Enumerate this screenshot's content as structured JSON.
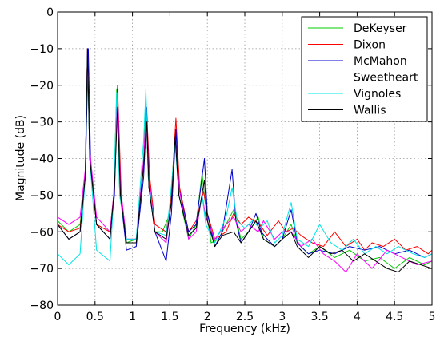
{
  "chart_data": {
    "type": "line",
    "title": "",
    "xlabel": "Frequency (kHz)",
    "ylabel": "Magnitude (dB)",
    "xlim": [
      0,
      5
    ],
    "ylim": [
      -80,
      0
    ],
    "grid": true,
    "legend_position": "top-right",
    "x_ticks": [
      "0",
      "0.5",
      "1",
      "1.5",
      "2",
      "2.5",
      "3",
      "3.5",
      "4",
      "4.5",
      "5"
    ],
    "y_ticks": [
      "0",
      "−10",
      "−20",
      "−30",
      "−40",
      "−50",
      "−60",
      "−70",
      "−80"
    ],
    "series": [
      {
        "name": "DeKeyser",
        "color": "#00cc00",
        "points": [
          [
            0,
            -57
          ],
          [
            0.15,
            -60
          ],
          [
            0.3,
            -58
          ],
          [
            0.37,
            -45
          ],
          [
            0.4,
            -10
          ],
          [
            0.43,
            -40
          ],
          [
            0.52,
            -58
          ],
          [
            0.7,
            -60
          ],
          [
            0.75,
            -50
          ],
          [
            0.79,
            -21
          ],
          [
            0.83,
            -50
          ],
          [
            0.92,
            -63
          ],
          [
            1.05,
            -62
          ],
          [
            1.15,
            -40
          ],
          [
            1.18,
            -25
          ],
          [
            1.21,
            -45
          ],
          [
            1.3,
            -60
          ],
          [
            1.4,
            -60
          ],
          [
            1.5,
            -55
          ],
          [
            1.57,
            -33
          ],
          [
            1.62,
            -50
          ],
          [
            1.75,
            -62
          ],
          [
            1.85,
            -58
          ],
          [
            1.93,
            -44
          ],
          [
            1.97,
            -52
          ],
          [
            2.05,
            -63
          ],
          [
            2.15,
            -62
          ],
          [
            2.25,
            -58
          ],
          [
            2.35,
            -54
          ],
          [
            2.45,
            -62
          ],
          [
            2.55,
            -60
          ],
          [
            2.68,
            -56
          ],
          [
            2.75,
            -62
          ],
          [
            2.9,
            -64
          ],
          [
            3.0,
            -62
          ],
          [
            3.12,
            -58
          ],
          [
            3.2,
            -63
          ],
          [
            3.35,
            -66
          ],
          [
            3.5,
            -64
          ],
          [
            3.7,
            -67
          ],
          [
            3.9,
            -65
          ],
          [
            4.1,
            -68
          ],
          [
            4.3,
            -67
          ],
          [
            4.5,
            -70
          ],
          [
            4.7,
            -67
          ],
          [
            4.9,
            -69
          ],
          [
            5.0,
            -68
          ]
        ]
      },
      {
        "name": "Dixon",
        "color": "#ff0000",
        "points": [
          [
            0,
            -58
          ],
          [
            0.15,
            -60
          ],
          [
            0.3,
            -59
          ],
          [
            0.37,
            -45
          ],
          [
            0.4,
            -10
          ],
          [
            0.43,
            -40
          ],
          [
            0.52,
            -58
          ],
          [
            0.7,
            -60
          ],
          [
            0.75,
            -50
          ],
          [
            0.8,
            -20
          ],
          [
            0.85,
            -50
          ],
          [
            0.92,
            -62
          ],
          [
            1.05,
            -62
          ],
          [
            1.15,
            -42
          ],
          [
            1.19,
            -27
          ],
          [
            1.23,
            -45
          ],
          [
            1.3,
            -58
          ],
          [
            1.45,
            -60
          ],
          [
            1.52,
            -50
          ],
          [
            1.58,
            -29
          ],
          [
            1.63,
            -48
          ],
          [
            1.75,
            -60
          ],
          [
            1.85,
            -57
          ],
          [
            1.95,
            -49
          ],
          [
            2.0,
            -55
          ],
          [
            2.1,
            -62
          ],
          [
            2.25,
            -60
          ],
          [
            2.35,
            -55
          ],
          [
            2.45,
            -58
          ],
          [
            2.55,
            -56
          ],
          [
            2.7,
            -58
          ],
          [
            2.8,
            -61
          ],
          [
            2.95,
            -57
          ],
          [
            3.05,
            -60
          ],
          [
            3.15,
            -59
          ],
          [
            3.25,
            -61
          ],
          [
            3.4,
            -63
          ],
          [
            3.55,
            -64
          ],
          [
            3.7,
            -60
          ],
          [
            3.85,
            -64
          ],
          [
            4.0,
            -62
          ],
          [
            4.1,
            -65
          ],
          [
            4.2,
            -63
          ],
          [
            4.35,
            -64
          ],
          [
            4.5,
            -62
          ],
          [
            4.65,
            -65
          ],
          [
            4.8,
            -64
          ],
          [
            4.95,
            -66
          ],
          [
            5.0,
            -65
          ]
        ]
      },
      {
        "name": "McMahon",
        "color": "#0000cc",
        "points": [
          [
            0,
            -58
          ],
          [
            0.15,
            -62
          ],
          [
            0.3,
            -60
          ],
          [
            0.37,
            -45
          ],
          [
            0.41,
            -10
          ],
          [
            0.44,
            -40
          ],
          [
            0.52,
            -58
          ],
          [
            0.7,
            -62
          ],
          [
            0.76,
            -50
          ],
          [
            0.8,
            -21
          ],
          [
            0.84,
            -50
          ],
          [
            0.92,
            -65
          ],
          [
            1.05,
            -64
          ],
          [
            1.15,
            -45
          ],
          [
            1.19,
            -26
          ],
          [
            1.22,
            -48
          ],
          [
            1.3,
            -60
          ],
          [
            1.45,
            -68
          ],
          [
            1.52,
            -55
          ],
          [
            1.58,
            -32
          ],
          [
            1.62,
            -48
          ],
          [
            1.75,
            -60
          ],
          [
            1.85,
            -58
          ],
          [
            1.96,
            -40
          ],
          [
            2.0,
            -55
          ],
          [
            2.1,
            -64
          ],
          [
            2.2,
            -60
          ],
          [
            2.33,
            -43
          ],
          [
            2.38,
            -57
          ],
          [
            2.45,
            -63
          ],
          [
            2.55,
            -60
          ],
          [
            2.65,
            -55
          ],
          [
            2.72,
            -60
          ],
          [
            2.8,
            -62
          ],
          [
            2.9,
            -64
          ],
          [
            3.0,
            -62
          ],
          [
            3.12,
            -54
          ],
          [
            3.2,
            -63
          ],
          [
            3.35,
            -66
          ],
          [
            3.5,
            -65
          ],
          [
            3.7,
            -66
          ],
          [
            3.9,
            -64
          ],
          [
            4.1,
            -65
          ],
          [
            4.3,
            -64
          ],
          [
            4.5,
            -66
          ],
          [
            4.7,
            -65
          ],
          [
            4.9,
            -67
          ],
          [
            5.0,
            -66
          ]
        ]
      },
      {
        "name": "Sweetheart",
        "color": "#ff00ff",
        "points": [
          [
            0,
            -56
          ],
          [
            0.15,
            -58
          ],
          [
            0.3,
            -56
          ],
          [
            0.37,
            -43
          ],
          [
            0.4,
            -10
          ],
          [
            0.43,
            -38
          ],
          [
            0.52,
            -56
          ],
          [
            0.7,
            -60
          ],
          [
            0.76,
            -48
          ],
          [
            0.8,
            -22
          ],
          [
            0.84,
            -48
          ],
          [
            0.92,
            -62
          ],
          [
            1.05,
            -62
          ],
          [
            1.15,
            -40
          ],
          [
            1.18,
            -28
          ],
          [
            1.22,
            -45
          ],
          [
            1.3,
            -60
          ],
          [
            1.45,
            -63
          ],
          [
            1.52,
            -52
          ],
          [
            1.57,
            -34
          ],
          [
            1.62,
            -48
          ],
          [
            1.75,
            -62
          ],
          [
            1.85,
            -60
          ],
          [
            1.93,
            -50
          ],
          [
            1.98,
            -56
          ],
          [
            2.1,
            -62
          ],
          [
            2.25,
            -58
          ],
          [
            2.35,
            -56
          ],
          [
            2.45,
            -60
          ],
          [
            2.55,
            -58
          ],
          [
            2.68,
            -60
          ],
          [
            2.75,
            -57
          ],
          [
            2.9,
            -62
          ],
          [
            3.0,
            -60
          ],
          [
            3.12,
            -60
          ],
          [
            3.25,
            -64
          ],
          [
            3.4,
            -62
          ],
          [
            3.55,
            -66
          ],
          [
            3.7,
            -68
          ],
          [
            3.85,
            -71
          ],
          [
            4.0,
            -66
          ],
          [
            4.2,
            -70
          ],
          [
            4.4,
            -65
          ],
          [
            4.6,
            -67
          ],
          [
            4.8,
            -69
          ],
          [
            5.0,
            -68
          ]
        ]
      },
      {
        "name": "Vignoles",
        "color": "#00e5e5",
        "points": [
          [
            0,
            -66
          ],
          [
            0.15,
            -69
          ],
          [
            0.3,
            -66
          ],
          [
            0.37,
            -45
          ],
          [
            0.4,
            -11
          ],
          [
            0.43,
            -40
          ],
          [
            0.52,
            -65
          ],
          [
            0.7,
            -68
          ],
          [
            0.75,
            -50
          ],
          [
            0.79,
            -22
          ],
          [
            0.83,
            -50
          ],
          [
            0.92,
            -62
          ],
          [
            1.05,
            -62
          ],
          [
            1.15,
            -35
          ],
          [
            1.18,
            -21
          ],
          [
            1.21,
            -45
          ],
          [
            1.3,
            -60
          ],
          [
            1.45,
            -61
          ],
          [
            1.5,
            -52
          ],
          [
            1.57,
            -36
          ],
          [
            1.62,
            -50
          ],
          [
            1.75,
            -61
          ],
          [
            1.85,
            -59
          ],
          [
            1.93,
            -50
          ],
          [
            1.98,
            -58
          ],
          [
            2.1,
            -63
          ],
          [
            2.25,
            -56
          ],
          [
            2.33,
            -48
          ],
          [
            2.4,
            -57
          ],
          [
            2.5,
            -59
          ],
          [
            2.6,
            -57
          ],
          [
            2.7,
            -59
          ],
          [
            2.8,
            -57
          ],
          [
            2.9,
            -63
          ],
          [
            3.0,
            -61
          ],
          [
            3.12,
            -52
          ],
          [
            3.2,
            -62
          ],
          [
            3.35,
            -64
          ],
          [
            3.5,
            -58
          ],
          [
            3.65,
            -63
          ],
          [
            3.8,
            -65
          ],
          [
            3.95,
            -62
          ],
          [
            4.1,
            -66
          ],
          [
            4.25,
            -64
          ],
          [
            4.4,
            -66
          ],
          [
            4.55,
            -64
          ],
          [
            4.75,
            -66
          ],
          [
            4.9,
            -67
          ],
          [
            5.0,
            -66
          ]
        ]
      },
      {
        "name": "Wallis",
        "color": "#000000",
        "points": [
          [
            0,
            -58
          ],
          [
            0.15,
            -62
          ],
          [
            0.3,
            -60
          ],
          [
            0.37,
            -45
          ],
          [
            0.4,
            -10
          ],
          [
            0.43,
            -40
          ],
          [
            0.52,
            -58
          ],
          [
            0.7,
            -62
          ],
          [
            0.76,
            -48
          ],
          [
            0.8,
            -26
          ],
          [
            0.84,
            -50
          ],
          [
            0.92,
            -63
          ],
          [
            1.05,
            -63
          ],
          [
            1.15,
            -42
          ],
          [
            1.19,
            -30
          ],
          [
            1.22,
            -48
          ],
          [
            1.3,
            -60
          ],
          [
            1.45,
            -62
          ],
          [
            1.52,
            -52
          ],
          [
            1.57,
            -34
          ],
          [
            1.62,
            -50
          ],
          [
            1.75,
            -61
          ],
          [
            1.85,
            -59
          ],
          [
            1.96,
            -46
          ],
          [
            2.0,
            -57
          ],
          [
            2.1,
            -64
          ],
          [
            2.2,
            -61
          ],
          [
            2.35,
            -60
          ],
          [
            2.45,
            -63
          ],
          [
            2.55,
            -60
          ],
          [
            2.65,
            -57
          ],
          [
            2.75,
            -62
          ],
          [
            2.9,
            -64
          ],
          [
            3.0,
            -62
          ],
          [
            3.12,
            -60
          ],
          [
            3.2,
            -64
          ],
          [
            3.35,
            -67
          ],
          [
            3.5,
            -64
          ],
          [
            3.65,
            -66
          ],
          [
            3.8,
            -65
          ],
          [
            3.95,
            -68
          ],
          [
            4.1,
            -66
          ],
          [
            4.25,
            -68
          ],
          [
            4.4,
            -70
          ],
          [
            4.55,
            -71
          ],
          [
            4.7,
            -68
          ],
          [
            4.85,
            -69
          ],
          [
            5.0,
            -70
          ]
        ]
      }
    ]
  }
}
